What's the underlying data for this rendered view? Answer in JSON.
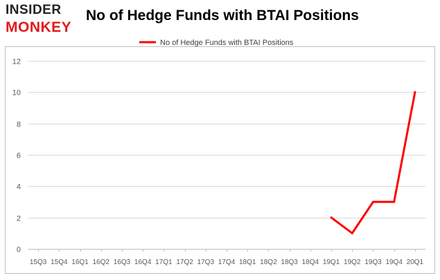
{
  "logo": {
    "line1": "INSIDER",
    "line2": "MONKEY"
  },
  "colors": {
    "series": "#ff0000",
    "grid": "#d9d9d9",
    "border": "#bfbfbf",
    "axis_text": "#595959",
    "logo_red": "#e01b1b"
  },
  "chart_data": {
    "type": "line",
    "title": "No of Hedge Funds with BTAI Positions",
    "legend_position": "top-center",
    "grid": true,
    "xlabel": "",
    "ylabel": "",
    "ylim": [
      0,
      12
    ],
    "yticks": [
      0,
      2,
      4,
      6,
      8,
      10,
      12
    ],
    "categories": [
      "15Q3",
      "15Q4",
      "16Q1",
      "16Q2",
      "16Q3",
      "16Q4",
      "17Q1",
      "17Q2",
      "17Q3",
      "17Q4",
      "18Q1",
      "18Q2",
      "18Q3",
      "18Q4",
      "19Q1",
      "19Q2",
      "19Q3",
      "19Q4",
      "20Q1"
    ],
    "series": [
      {
        "name": "No of Hedge Funds with BTAI Positions",
        "values": [
          null,
          null,
          null,
          null,
          null,
          null,
          null,
          null,
          null,
          null,
          null,
          null,
          null,
          null,
          2,
          1,
          3,
          3,
          10
        ]
      }
    ]
  }
}
